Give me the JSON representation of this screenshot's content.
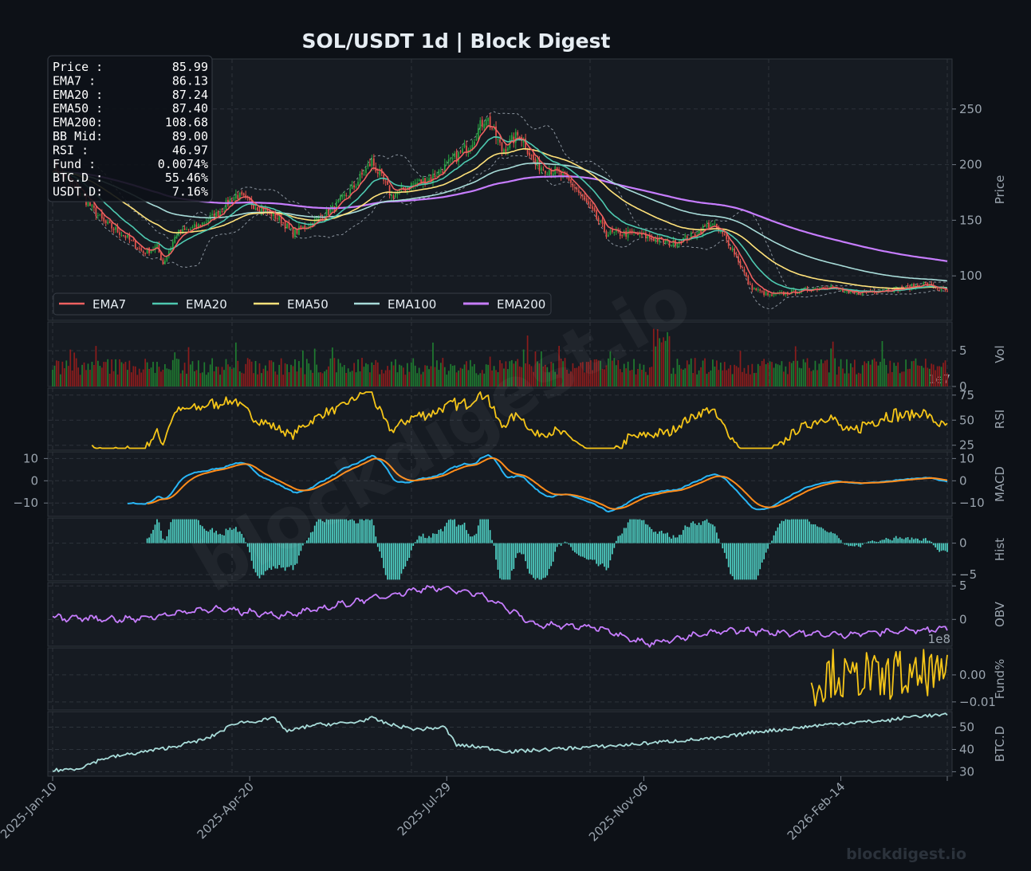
{
  "colors": {
    "bg": "#0d1117",
    "panel": "#161b22",
    "grid": "#2d333b",
    "up": "#26a641",
    "down": "#e5534b",
    "ema7": "#ef6161",
    "ema20": "#4ec9b0",
    "ema50": "#ffe27a",
    "ema100": "#a8dcd9",
    "ema200": "#c77dff",
    "rsi": "#f5c518",
    "macd": "#29b6f6",
    "signal": "#ff8c1a",
    "hist": "#4fd1c5",
    "obv": "#c77dff",
    "fund": "#f5c518",
    "btcd": "#a8dcd9"
  },
  "chart_data": {
    "type": "line",
    "title": "SOL/USDT  1d  |  Block Digest",
    "x_ticks": [
      "2025-Jan-10",
      "2025-Apr-20",
      "2025-Jul-29",
      "2025-Nov-06",
      "2026-Feb-14"
    ],
    "x_range": [
      "2025-01-10",
      "2026-04-08"
    ],
    "grid": true,
    "info_box": [
      {
        "label": "Price :",
        "value": "85.99"
      },
      {
        "label": "EMA7  :",
        "value": "86.13"
      },
      {
        "label": "EMA20 :",
        "value": "87.24"
      },
      {
        "label": "EMA50 :",
        "value": "87.40"
      },
      {
        "label": "EMA200:",
        "value": "108.68"
      },
      {
        "label": "BB Mid:",
        "value": "89.00"
      },
      {
        "label": "RSI   :",
        "value": "46.97"
      },
      {
        "label": "Fund  :",
        "value": "0.0074%"
      },
      {
        "label": "BTC.D :",
        "value": "55.46%"
      },
      {
        "label": "USDT.D:",
        "value": "7.16%"
      }
    ],
    "legend": [
      "EMA7",
      "EMA20",
      "EMA50",
      "EMA100",
      "EMA200"
    ],
    "legend_position": "lower-left",
    "panels": [
      {
        "name": "price",
        "ylabel": "Price",
        "ylim": [
          60,
          295
        ],
        "yticks": [
          "100",
          "150",
          "200",
          "250"
        ],
        "close_anchors": [
          [
            0,
            198
          ],
          [
            20,
            176
          ],
          [
            40,
            148
          ],
          [
            55,
            137
          ],
          [
            70,
            121
          ],
          [
            80,
            126
          ],
          [
            85,
            111
          ],
          [
            95,
            138
          ],
          [
            110,
            144
          ],
          [
            125,
            155
          ],
          [
            140,
            173
          ],
          [
            155,
            163
          ],
          [
            165,
            158
          ],
          [
            175,
            150
          ],
          [
            185,
            138
          ],
          [
            200,
            148
          ],
          [
            215,
            160
          ],
          [
            230,
            178
          ],
          [
            245,
            203
          ],
          [
            260,
            172
          ],
          [
            275,
            182
          ],
          [
            290,
            188
          ],
          [
            305,
            202
          ],
          [
            320,
            219
          ],
          [
            333,
            244
          ],
          [
            345,
            213
          ],
          [
            358,
            228
          ],
          [
            370,
            200
          ],
          [
            385,
            194
          ],
          [
            400,
            180
          ],
          [
            412,
            160
          ],
          [
            425,
            138
          ],
          [
            445,
            138
          ],
          [
            460,
            134
          ],
          [
            475,
            129
          ],
          [
            490,
            136
          ],
          [
            505,
            147
          ],
          [
            515,
            135
          ],
          [
            525,
            118
          ],
          [
            535,
            90
          ],
          [
            550,
            82
          ],
          [
            565,
            85
          ],
          [
            580,
            88
          ],
          [
            595,
            91
          ],
          [
            610,
            84
          ],
          [
            625,
            86
          ],
          [
            640,
            88
          ],
          [
            655,
            89
          ],
          [
            668,
            93
          ],
          [
            680,
            88
          ],
          [
            686,
            86
          ]
        ],
        "series_last": {
          "EMA7": 86.13,
          "EMA20": 87.24,
          "EMA50": 87.4,
          "EMA100": 92.0,
          "EMA200": 108.68
        }
      },
      {
        "name": "volume",
        "ylabel": "Vol",
        "ylim": [
          0,
          9
        ],
        "yticks": [
          "0",
          "5"
        ],
        "scale_label": "1e7"
      },
      {
        "name": "rsi",
        "ylabel": "RSI",
        "ylim": [
          20,
          82
        ],
        "yticks": [
          "25",
          "50",
          "75"
        ],
        "last": 46.97
      },
      {
        "name": "macd",
        "ylabel": "MACD",
        "ylim": [
          -16,
          13
        ],
        "yticks": [
          "−10",
          "0",
          "10"
        ],
        "left_yticks": [
          "−10",
          "0",
          "10"
        ],
        "series": [
          "MACD",
          "Signal"
        ]
      },
      {
        "name": "hist",
        "ylabel": "Hist",
        "ylim": [
          -6,
          4
        ],
        "yticks": [
          "−5",
          "0"
        ]
      },
      {
        "name": "obv",
        "ylabel": "OBV",
        "ylim": [
          -4,
          5.5
        ],
        "yticks": [
          "0",
          "5"
        ],
        "scale_label": "1e8"
      },
      {
        "name": "funding",
        "ylabel": "Fund%",
        "ylim": [
          -0.013,
          0.01
        ],
        "yticks": [
          "−0.01",
          "0.00"
        ],
        "last": 0.0074
      },
      {
        "name": "btc_dominance",
        "ylabel": "BTC.D",
        "ylim": [
          28,
          57
        ],
        "yticks": [
          "30",
          "40",
          "50"
        ],
        "last": 55.46,
        "anchors": [
          [
            0,
            30.5
          ],
          [
            20,
            31.5
          ],
          [
            40,
            36
          ],
          [
            60,
            38
          ],
          [
            90,
            41
          ],
          [
            120,
            45
          ],
          [
            140,
            52
          ],
          [
            160,
            53
          ],
          [
            170,
            54
          ],
          [
            180,
            48
          ],
          [
            200,
            51
          ],
          [
            230,
            52
          ],
          [
            245,
            54
          ],
          [
            260,
            51
          ],
          [
            280,
            49
          ],
          [
            300,
            50
          ],
          [
            310,
            42
          ],
          [
            330,
            41
          ],
          [
            350,
            39
          ],
          [
            380,
            40
          ],
          [
            410,
            41
          ],
          [
            440,
            42
          ],
          [
            460,
            43
          ],
          [
            480,
            44
          ],
          [
            510,
            45
          ],
          [
            540,
            48
          ],
          [
            560,
            49
          ],
          [
            590,
            51
          ],
          [
            610,
            52
          ],
          [
            640,
            53
          ],
          [
            660,
            55
          ],
          [
            686,
            55.46
          ]
        ]
      }
    ]
  },
  "watermark": {
    "diagonal": "blockdigest.io",
    "corner": "blockdigest.io"
  }
}
